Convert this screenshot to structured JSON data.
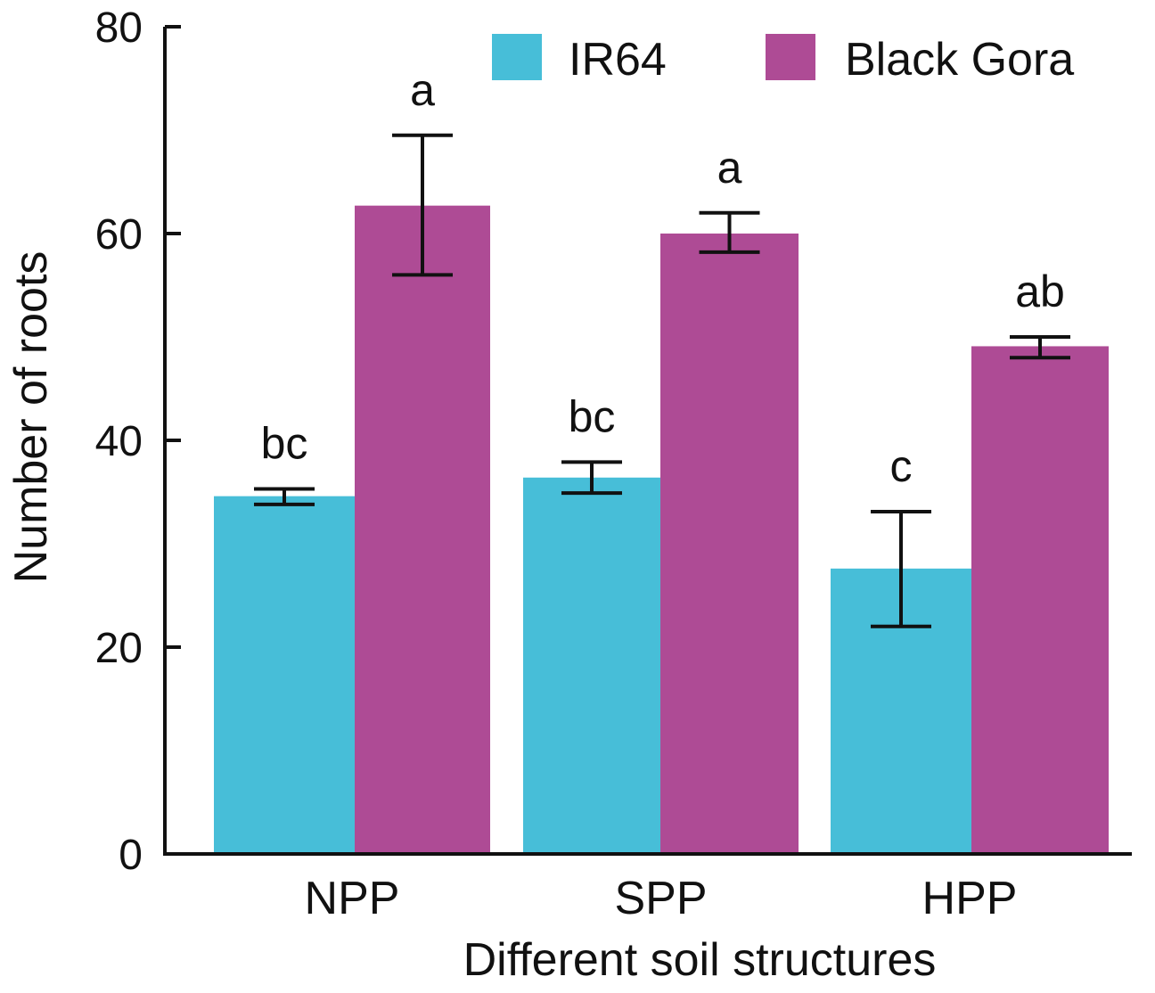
{
  "chart_data": {
    "type": "bar",
    "xlabel": "Different soil structures",
    "ylabel": "Number of roots",
    "categories": [
      "NPP",
      "SPP",
      "HPP"
    ],
    "ylim": [
      0,
      80
    ],
    "yticks": [
      0,
      20,
      40,
      60,
      80
    ],
    "legend_position": "top-right",
    "grid": false,
    "series": [
      {
        "name": "IR64",
        "color": "#47bed8",
        "values": [
          34.6,
          36.4,
          27.6
        ],
        "error_low": [
          33.8,
          34.9,
          22.0
        ],
        "error_high": [
          35.3,
          37.9,
          33.1
        ],
        "significance": [
          "bc",
          "bc",
          "c"
        ]
      },
      {
        "name": "Black Gora",
        "color": "#ae4b95",
        "values": [
          62.7,
          60.0,
          49.1
        ],
        "error_low": [
          56.0,
          58.2,
          48.0
        ],
        "error_high": [
          69.5,
          62.0,
          50.0
        ],
        "significance": [
          "a",
          "a",
          "ab"
        ]
      }
    ]
  }
}
